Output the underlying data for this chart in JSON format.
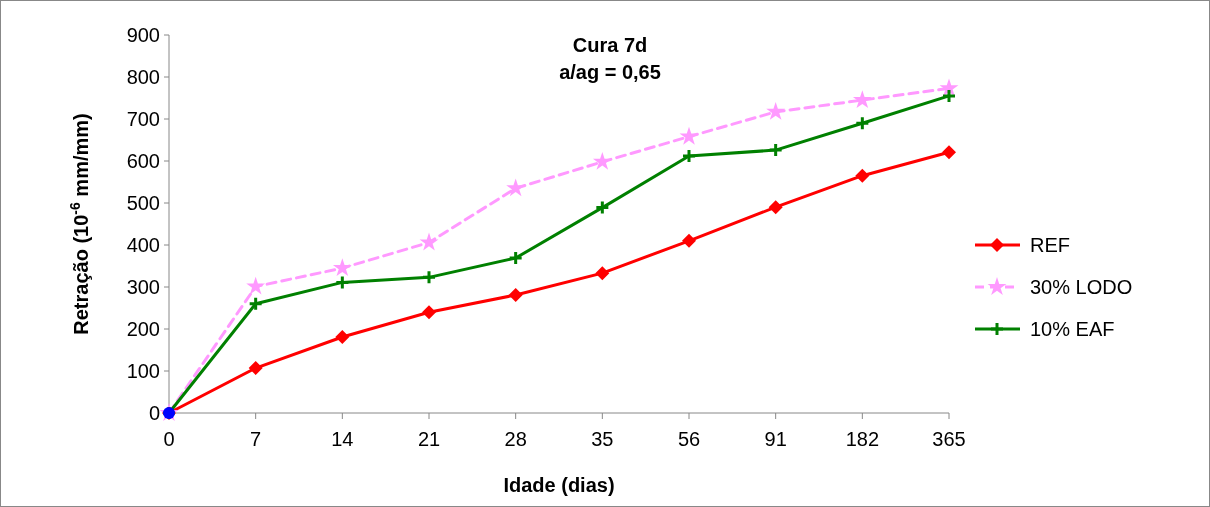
{
  "chart_data": {
    "type": "line",
    "title": "Cura 7d\na/ag = 0,65",
    "xlabel": "Idade (dias)",
    "ylabel": "Retração (10$^{-6}$ mm/mm)",
    "categories": [
      "0",
      "7",
      "14",
      "21",
      "28",
      "35",
      "56",
      "91",
      "182",
      "365"
    ],
    "ylim": [
      0,
      900
    ],
    "yticks": [
      0,
      100,
      200,
      300,
      400,
      500,
      600,
      700,
      800,
      900
    ],
    "grid": false,
    "legend": "right",
    "series": [
      {
        "name": "REF",
        "color": "#ff0000",
        "marker": "diamond",
        "line_style": "solid",
        "values": [
          0,
          107,
          181,
          240,
          281,
          333,
          410,
          490,
          565,
          621
        ]
      },
      {
        "name": "30% LODO",
        "color": "#ff99ff",
        "marker": "star",
        "line_style": "dashed",
        "values": [
          0,
          301,
          345,
          406,
          535,
          598,
          658,
          717,
          745,
          773
        ]
      },
      {
        "name": "10% EAF",
        "color": "#008000",
        "marker": "cross",
        "line_style": "solid",
        "values": [
          0,
          260,
          311,
          323,
          369,
          489,
          612,
          626,
          690,
          755
        ]
      },
      {
        "type": "scatter",
        "color": "#0000ff",
        "marker": "circle",
        "values": [
          0,
          null,
          null,
          null,
          null,
          null,
          null,
          null,
          null,
          null
        ]
      }
    ]
  }
}
